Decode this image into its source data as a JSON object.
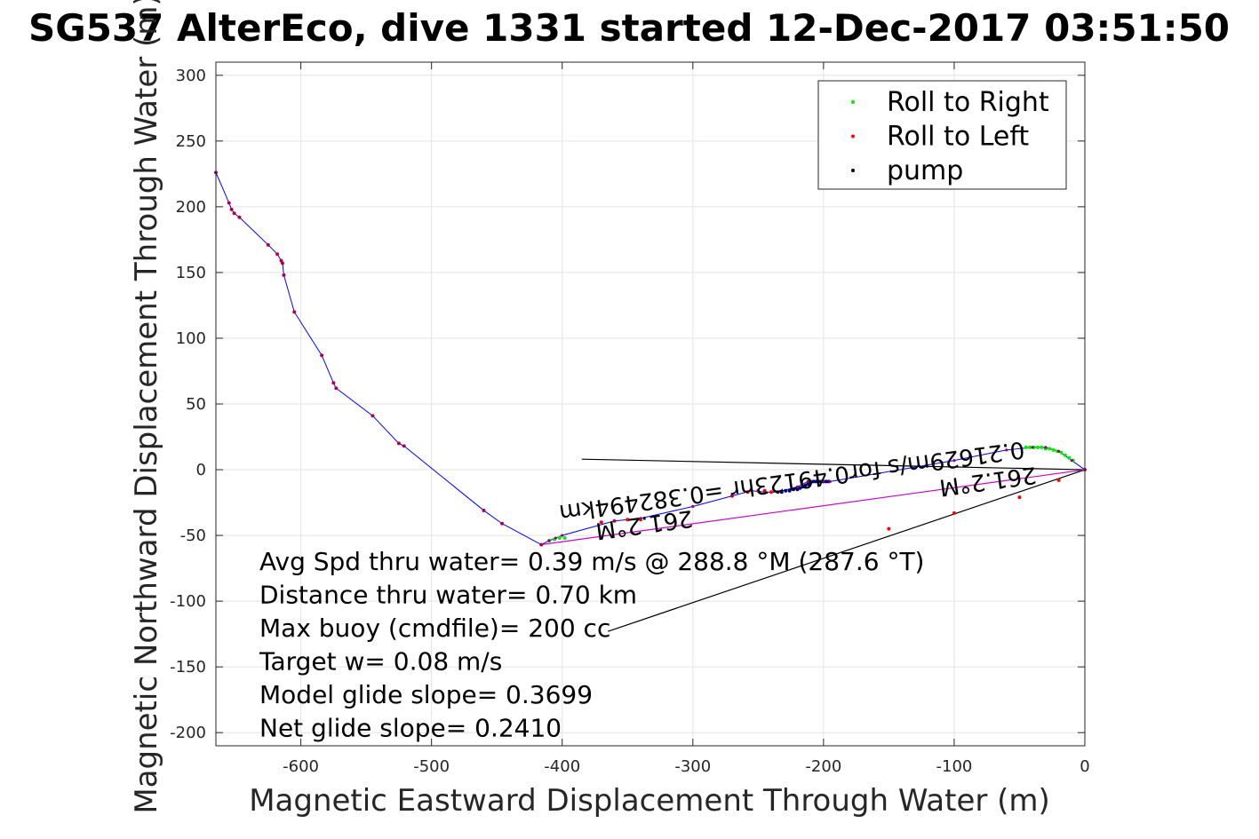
{
  "chart_data": {
    "type": "line",
    "title": "SG537 AlterEco, dive 1331 started 12-Dec-2017 03:51:50",
    "xlabel": "Magnetic Eastward Displacement Through Water (m)",
    "ylabel": "Magnetic Northward Displacement Through Water (m)",
    "xlim": [
      -665,
      0
    ],
    "ylim": [
      -210,
      310
    ],
    "xticks": [
      -600,
      -500,
      -400,
      -300,
      -200,
      -100,
      0
    ],
    "yticks": [
      -200,
      -150,
      -100,
      -50,
      0,
      50,
      100,
      150,
      200,
      250,
      300
    ],
    "grid": true,
    "legend_position": "top-right",
    "legend": [
      {
        "label": "Roll to Right",
        "color": "#00ee00"
      },
      {
        "label": "Roll to Left",
        "color": "#ff0000"
      },
      {
        "label": "pump",
        "color": "#000000"
      }
    ],
    "series": [
      {
        "name": "track",
        "color": "#0000ff",
        "x": [
          -665,
          -655,
          -653,
          -651,
          -647,
          -625,
          -618,
          -615,
          -614,
          -613,
          -605,
          -584,
          -575,
          -573,
          -545,
          -525,
          -521,
          -460,
          -446,
          -416,
          -410,
          -405,
          -400,
          -360,
          -340,
          -300,
          -270,
          -255,
          -245,
          -235,
          -220,
          -212,
          -200,
          -195,
          -100,
          -60,
          -40,
          -30,
          -20,
          -10,
          0
        ],
        "y": [
          226,
          203,
          198,
          195,
          192,
          171,
          164,
          159,
          157,
          148,
          120,
          87,
          66,
          62,
          41,
          20,
          18,
          -31,
          -41,
          -57,
          -54,
          -52,
          -50,
          -39,
          -37,
          -28,
          -20,
          -16,
          -17,
          -17,
          -13,
          -9,
          -9,
          -9,
          7,
          15,
          17,
          17,
          14,
          7,
          0
        ]
      },
      {
        "name": "roll-right",
        "color": "#00ee00",
        "x": [
          -410,
          -406,
          -402,
          -398,
          -45,
          -42,
          -39,
          -36,
          -33,
          -30,
          -27,
          -24,
          -21,
          -18,
          -15,
          -12,
          -9
        ],
        "y": [
          -54,
          -53,
          -52,
          -52,
          17,
          17,
          17,
          17,
          17,
          16,
          16,
          15,
          14,
          13,
          11,
          9,
          7
        ]
      },
      {
        "name": "roll-left",
        "color": "#ff0000",
        "x": [
          -665,
          -655,
          -653,
          -651,
          -647,
          -625,
          -618,
          -615,
          -614,
          -613,
          -605,
          -584,
          -575,
          -573,
          -545,
          -525,
          -521,
          -460,
          -446,
          -416,
          -370,
          -360,
          -350,
          -340,
          -270,
          -258,
          -250,
          -245,
          -240,
          -150,
          -100,
          -50,
          -20,
          0
        ],
        "y": [
          226,
          203,
          198,
          195,
          192,
          171,
          164,
          159,
          157,
          148,
          120,
          87,
          66,
          62,
          41,
          20,
          18,
          -31,
          -41,
          -57,
          -40,
          -39,
          -38,
          -38,
          -20,
          -17,
          -16,
          -16,
          -17,
          -45,
          -33,
          -21,
          -8,
          0
        ]
      },
      {
        "name": "pump",
        "color": "#000080",
        "x": [
          -235,
          -232,
          -229,
          -226,
          -223,
          -220,
          -218,
          -216,
          -214,
          -212,
          -210,
          -208,
          -206,
          -204,
          -202,
          -200,
          -198,
          -196
        ],
        "y": [
          -17,
          -17,
          -16,
          -16,
          -15,
          -15,
          -14,
          -13,
          -12,
          -11,
          -10,
          -9,
          -9,
          -9,
          -9,
          -9,
          -9,
          -9
        ]
      }
    ],
    "line_segments": [
      {
        "name": "current-arrow",
        "color": "#000000",
        "x": [
          -385,
          0
        ],
        "y": [
          8,
          0
        ]
      },
      {
        "name": "drift-line",
        "color": "#000000",
        "x": [
          -365,
          0
        ],
        "y": [
          -123,
          0
        ]
      },
      {
        "name": "magenta-vector",
        "color": "#cc00cc",
        "x": [
          -416,
          0
        ],
        "y": [
          -57,
          0
        ]
      }
    ],
    "annotations": [
      "Avg Spd thru water= 0.39 m/s @ 288.8 °M (287.6 °T)",
      "Distance thru water=  0.70 km",
      "Max buoy (cmdfile)= 200 cc",
      "Target w= 0.08 m/s",
      "Model glide slope= 0.3699",
      "Net glide slope= 0.2410"
    ],
    "rotated_annotations": [
      {
        "text": "261.2°M",
        "x": -75,
        "y": -3
      },
      {
        "text": "0.21629m/s for0.49123hr =0.382494km",
        "x": -225,
        "y": -3
      },
      {
        "text": "261.2°M",
        "x": -338,
        "y": -36
      }
    ]
  }
}
